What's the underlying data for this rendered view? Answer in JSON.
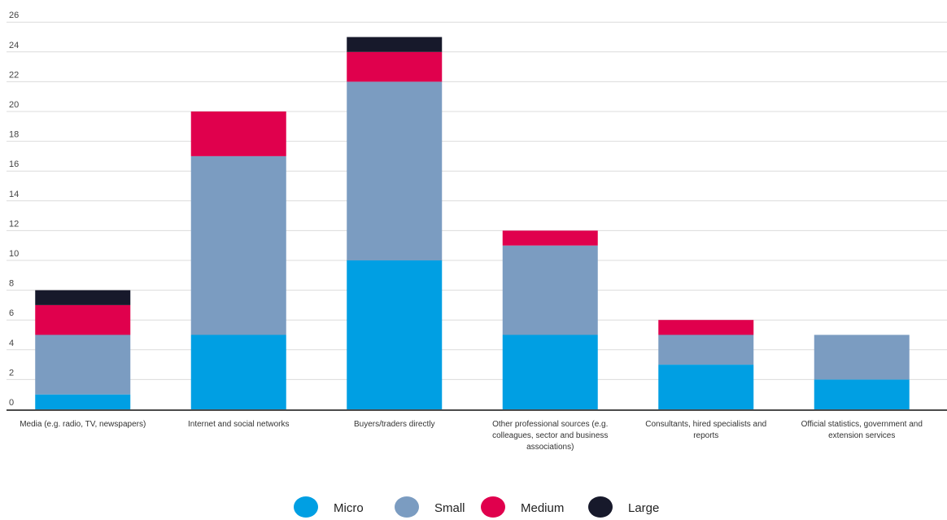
{
  "chart_data": {
    "type": "bar",
    "stacked": true,
    "categories": [
      [
        "Media (e.g. radio, TV, newspapers)"
      ],
      [
        "Internet and social networks"
      ],
      [
        "Buyers/traders directly"
      ],
      [
        "Other professional sources (e.g.",
        "colleagues, sector and business",
        "associations)"
      ],
      [
        "Consultants, hired specialists and",
        "reports"
      ],
      [
        "Official statistics, government and",
        "extension services"
      ]
    ],
    "series": [
      {
        "name": "Micro",
        "color": "#009fe3",
        "values": [
          1,
          5,
          10,
          5,
          3,
          2
        ]
      },
      {
        "name": "Small",
        "color": "#7b9cc1",
        "values": [
          4,
          12,
          12,
          6,
          2,
          3
        ]
      },
      {
        "name": "Medium",
        "color": "#e0004d",
        "values": [
          2,
          3,
          2,
          1,
          1,
          0
        ]
      },
      {
        "name": "Large",
        "color": "#17192b",
        "values": [
          1,
          0,
          1,
          0,
          0,
          0
        ]
      }
    ],
    "yticks": [
      0,
      2,
      4,
      6,
      8,
      10,
      12,
      14,
      16,
      18,
      20,
      22,
      24,
      26
    ],
    "ylim": [
      0,
      26
    ],
    "grid": true,
    "legend_position": "bottom-center",
    "title": "",
    "xlabel": "",
    "ylabel": ""
  }
}
